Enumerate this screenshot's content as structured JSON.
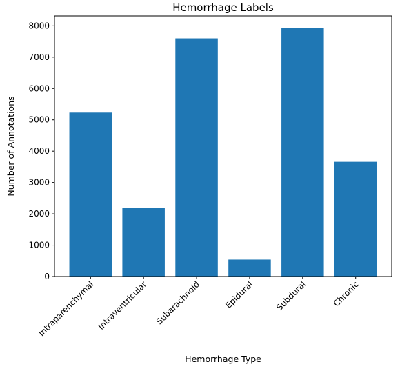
{
  "chart_data": {
    "type": "bar",
    "title": "Hemorrhage Labels",
    "xlabel": "Hemorrhage Type",
    "ylabel": "Number of Annotations",
    "categories": [
      "Intraparenchymal",
      "Intraventricular",
      "Subarachnoid",
      "Epidural",
      "Subdural",
      "Chronic"
    ],
    "values": [
      5230,
      2200,
      7600,
      540,
      7920,
      3660
    ],
    "ylim": [
      0,
      8316
    ],
    "yticks": [
      0,
      1000,
      2000,
      3000,
      4000,
      5000,
      6000,
      7000,
      8000
    ],
    "grid": false,
    "bar_color": "#1f77b4"
  }
}
